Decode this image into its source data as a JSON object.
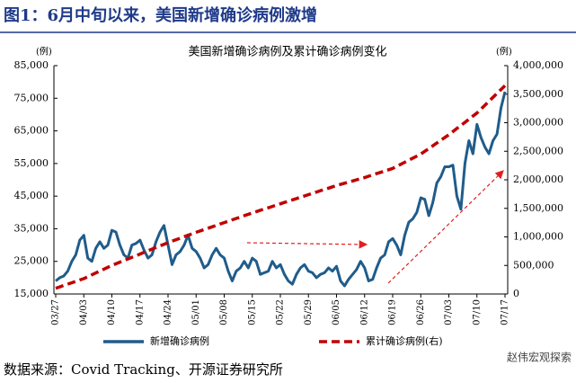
{
  "header": {
    "title": "图1：6月中旬以来，美国新增确诊病例激增"
  },
  "chart_data": {
    "type": "line",
    "title": "美国新增确诊病例及累计确诊病例变化",
    "y_label": "(例)",
    "y2_label": "(例)",
    "categories": [
      "03/27",
      null,
      null,
      null,
      null,
      null,
      null,
      "04/03",
      null,
      null,
      null,
      null,
      null,
      null,
      "04/10",
      null,
      null,
      null,
      null,
      null,
      null,
      "04/17",
      null,
      null,
      null,
      null,
      null,
      null,
      "04/24",
      null,
      null,
      null,
      null,
      null,
      null,
      "05/01",
      null,
      null,
      null,
      null,
      null,
      null,
      "05/08",
      null,
      null,
      null,
      null,
      null,
      null,
      "05/15",
      null,
      null,
      null,
      null,
      null,
      null,
      "05/22",
      null,
      null,
      null,
      null,
      null,
      null,
      "05/29",
      null,
      null,
      null,
      null,
      null,
      null,
      "06/05",
      null,
      null,
      null,
      null,
      null,
      null,
      "06/12",
      null,
      null,
      null,
      null,
      null,
      null,
      "06/19",
      null,
      null,
      null,
      null,
      null,
      null,
      "06/26",
      null,
      null,
      null,
      null,
      null,
      null,
      "07/03",
      null,
      null,
      null,
      null,
      null,
      null,
      "07/10",
      null,
      null,
      null,
      null,
      null,
      null,
      "07/17"
    ],
    "series": [
      {
        "name": "新增确诊病例",
        "color": "#1f5c8b",
        "line_style": "solid",
        "values": [
          19000,
          20000,
          20500,
          22000,
          25000,
          27000,
          31500,
          33000,
          26000,
          25000,
          29000,
          31000,
          29000,
          30000,
          34500,
          34000,
          30000,
          27000,
          26000,
          30000,
          30500,
          31500,
          28500,
          26000,
          27000,
          31000,
          34000,
          36000,
          30000,
          24000,
          27000,
          28000,
          30000,
          33000,
          29000,
          28000,
          26000,
          23000,
          24000,
          27000,
          29000,
          27000,
          26000,
          22000,
          19000,
          22000,
          23000,
          25000,
          23000,
          26000,
          25000,
          21000,
          21500,
          22000,
          25000,
          23000,
          24000,
          21000,
          19000,
          18000,
          21000,
          23000,
          24000,
          22000,
          21500,
          20000,
          21000,
          21500,
          23000,
          22000,
          23500,
          19000,
          17500,
          19500,
          21000,
          22500,
          25000,
          23000,
          19000,
          19500,
          23000,
          26000,
          27000,
          31000,
          32000,
          30000,
          27000,
          33000,
          37000,
          38000,
          40000,
          44500,
          44000,
          39000,
          43000,
          49000,
          51000,
          54000,
          54000,
          54500,
          45000,
          41000,
          55000,
          62000,
          58000,
          67000,
          63000,
          60000,
          58000,
          62000,
          64000,
          72000,
          77000
        ]
      },
      {
        "name": "累计确诊病例(右)",
        "color": "#c00000",
        "line_style": "dashed",
        "axis": "y2",
        "values": [
          100000,
          124000,
          149000,
          173000,
          197000,
          221000,
          246000,
          270000,
          303000,
          336000,
          369000,
          401000,
          434000,
          467000,
          500000,
          529000,
          557000,
          586000,
          614000,
          643000,
          671000,
          700000,
          729000,
          757000,
          786000,
          814000,
          843000,
          871000,
          900000,
          926000,
          951000,
          977000,
          1003000,
          1029000,
          1054000,
          1080000,
          1104000,
          1129000,
          1153000,
          1177000,
          1201000,
          1226000,
          1250000,
          1274000,
          1299000,
          1323000,
          1347000,
          1371000,
          1396000,
          1420000,
          1443000,
          1466000,
          1489000,
          1511000,
          1534000,
          1557000,
          1580000,
          1603000,
          1626000,
          1649000,
          1671000,
          1694000,
          1717000,
          1740000,
          1763000,
          1786000,
          1809000,
          1831000,
          1854000,
          1877000,
          1900000,
          1920000,
          1940000,
          1960000,
          1980000,
          2000000,
          2020000,
          2040000,
          2063000,
          2086000,
          2109000,
          2131000,
          2154000,
          2177000,
          2200000,
          2236000,
          2271000,
          2307000,
          2343000,
          2379000,
          2414000,
          2450000,
          2499000,
          2547000,
          2596000,
          2644000,
          2693000,
          2741000,
          2790000,
          2844000,
          2899000,
          2953000,
          3007000,
          3061000,
          3116000,
          3170000,
          3239000,
          3307000,
          3376000,
          3444000,
          3513000,
          3581000,
          3650000
        ]
      }
    ],
    "ylim": [
      15000,
      85000
    ],
    "yticks": [
      {
        "value": 15000,
        "label": "15,000"
      },
      {
        "value": 25000,
        "label": "25,000"
      },
      {
        "value": 35000,
        "label": "35,000"
      },
      {
        "value": 45000,
        "label": "45,000"
      },
      {
        "value": 55000,
        "label": "55,000"
      },
      {
        "value": 65000,
        "label": "65,000"
      },
      {
        "value": 75000,
        "label": "75,000"
      },
      {
        "value": 85000,
        "label": "85,000"
      }
    ],
    "y2lim": [
      0,
      4000000
    ],
    "y2ticks": [
      0,
      {
        "value": 500000,
        "label": "500,000"
      },
      {
        "value": 1000000,
        "label": "1,000,000"
      },
      {
        "value": 1500000,
        "label": "1,500,000"
      },
      {
        "value": 2000000,
        "label": "2,000,000"
      },
      {
        "value": 2500000,
        "label": "2,500,000"
      },
      {
        "value": 3000000,
        "label": "3,000,000"
      },
      {
        "value": 3500000,
        "label": "3,500,000"
      },
      {
        "value": 4000000,
        "label": "4,000,000"
      }
    ],
    "grid": false
  },
  "footer": {
    "source": "数据来源：Covid Tracking、开源证券研究所",
    "watermark": "赵伟宏观探索"
  }
}
